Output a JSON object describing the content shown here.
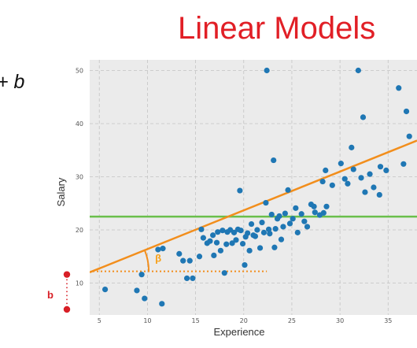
{
  "slide": {
    "title": "Linear Models",
    "equation_fragment": "+ b"
  },
  "colors": {
    "title": "#e11f26",
    "points": "#1f77b4",
    "fit_line": "#f28e1c",
    "mean_line": "#6abf4b",
    "intercept": "#d81f26",
    "plot_bg": "#ebebeb"
  },
  "chart_data": {
    "type": "scatter",
    "title": "",
    "xlabel": "Experience",
    "ylabel": "Salary",
    "xlim": [
      4,
      38
    ],
    "ylim": [
      4,
      52
    ],
    "xticks": [
      5,
      10,
      15,
      20,
      25,
      30,
      35
    ],
    "yticks": [
      10,
      20,
      30,
      40,
      50
    ],
    "grid": true,
    "points": [
      [
        5.6,
        8.8
      ],
      [
        8.9,
        8.6
      ],
      [
        9.4,
        11.6
      ],
      [
        9.7,
        7.1
      ],
      [
        11.1,
        16.3
      ],
      [
        11.6,
        16.5
      ],
      [
        11.5,
        6.1
      ],
      [
        13.3,
        15.5
      ],
      [
        13.7,
        14.2
      ],
      [
        14.1,
        10.9
      ],
      [
        14.4,
        14.2
      ],
      [
        14.7,
        10.9
      ],
      [
        15.4,
        15.0
      ],
      [
        15.6,
        20.1
      ],
      [
        15.8,
        18.5
      ],
      [
        16.2,
        17.5
      ],
      [
        16.5,
        17.9
      ],
      [
        16.8,
        19.0
      ],
      [
        16.9,
        15.2
      ],
      [
        17.2,
        17.6
      ],
      [
        17.3,
        19.6
      ],
      [
        17.6,
        16.1
      ],
      [
        17.8,
        19.9
      ],
      [
        18.0,
        11.9
      ],
      [
        18.2,
        17.3
      ],
      [
        18.3,
        19.6
      ],
      [
        18.6,
        20.0
      ],
      [
        18.8,
        17.5
      ],
      [
        19.0,
        19.5
      ],
      [
        19.2,
        18.1
      ],
      [
        19.4,
        20.1
      ],
      [
        19.6,
        27.4
      ],
      [
        19.7,
        19.9
      ],
      [
        19.9,
        17.4
      ],
      [
        20.1,
        13.4
      ],
      [
        20.2,
        18.7
      ],
      [
        20.4,
        19.4
      ],
      [
        20.6,
        16.1
      ],
      [
        20.8,
        21.1
      ],
      [
        21.0,
        19.0
      ],
      [
        21.2,
        18.8
      ],
      [
        21.4,
        20.0
      ],
      [
        21.7,
        16.6
      ],
      [
        21.9,
        21.4
      ],
      [
        22.1,
        19.5
      ],
      [
        22.4,
        50.0
      ],
      [
        22.3,
        25.1
      ],
      [
        22.6,
        20.1
      ],
      [
        22.7,
        19.3
      ],
      [
        22.9,
        22.9
      ],
      [
        23.1,
        33.1
      ],
      [
        23.2,
        16.7
      ],
      [
        23.3,
        20.2
      ],
      [
        23.5,
        22.1
      ],
      [
        23.7,
        22.6
      ],
      [
        23.9,
        18.2
      ],
      [
        24.1,
        20.6
      ],
      [
        24.3,
        23.1
      ],
      [
        24.6,
        27.5
      ],
      [
        24.8,
        21.2
      ],
      [
        25.1,
        22.1
      ],
      [
        25.4,
        24.1
      ],
      [
        25.6,
        19.5
      ],
      [
        26.0,
        23.0
      ],
      [
        26.3,
        21.6
      ],
      [
        26.6,
        20.6
      ],
      [
        27.0,
        24.8
      ],
      [
        27.3,
        24.4
      ],
      [
        27.4,
        23.3
      ],
      [
        27.9,
        22.8
      ],
      [
        28.2,
        29.1
      ],
      [
        28.3,
        23.2
      ],
      [
        28.6,
        24.4
      ],
      [
        28.5,
        31.2
      ],
      [
        29.2,
        28.4
      ],
      [
        30.1,
        32.5
      ],
      [
        30.5,
        29.6
      ],
      [
        30.8,
        28.7
      ],
      [
        31.2,
        35.5
      ],
      [
        31.4,
        31.4
      ],
      [
        31.9,
        50.0
      ],
      [
        32.2,
        29.8
      ],
      [
        32.4,
        41.2
      ],
      [
        32.6,
        27.1
      ],
      [
        33.1,
        30.5
      ],
      [
        33.5,
        28.0
      ],
      [
        34.1,
        26.6
      ],
      [
        34.2,
        31.9
      ],
      [
        34.8,
        31.2
      ],
      [
        36.1,
        46.7
      ],
      [
        36.9,
        42.3
      ],
      [
        37.2,
        37.6
      ],
      [
        36.6,
        32.4
      ]
    ],
    "fit_line": {
      "slope": 0.729,
      "intercept": 9.1
    },
    "mean_line": 22.5,
    "annotations": {
      "beta_label": "β",
      "intercept_label": "b",
      "angle_vertex": [
        17.6,
        12.2
      ],
      "intercept_level": 12.2
    }
  }
}
